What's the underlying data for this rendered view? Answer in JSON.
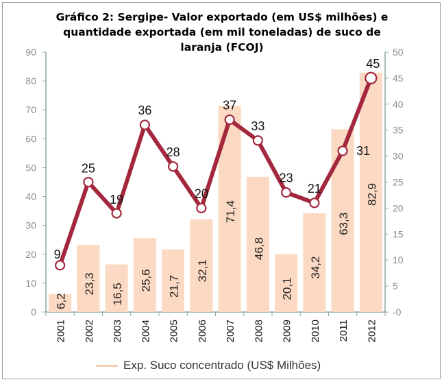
{
  "title_lines": [
    "Gráfico 2: Sergipe- Valor exportado (em US$ milhões) e",
    "quantidade exportada (em mil toneladas) de suco de",
    "laranja (FCOJ)"
  ],
  "legend": {
    "bar_label": "Exp. Suco concentrado (US$ Milhões)"
  },
  "colors": {
    "bar": "#fbd9c2",
    "line": "#a3283d",
    "marker_fill": "#ffffff",
    "axis": "#8aa6a6",
    "tick_text": "#8c8c8c"
  },
  "chart_data": {
    "type": "bar",
    "title": "Gráfico 2: Sergipe- Valor exportado (em US$ milhões) e quantidade exportada (em mil toneladas) de suco de laranja (FCOJ)",
    "categories": [
      "2001",
      "2002",
      "2003",
      "2004",
      "2005",
      "2006",
      "2007",
      "2008",
      "2009",
      "2010",
      "2011",
      "2012"
    ],
    "bar_labels": [
      "6,2",
      "23,3",
      "16,5",
      "25,6",
      "21,7",
      "32,1",
      "71,4",
      "46,8",
      "20,1",
      "34,2",
      "63,3",
      "82,9"
    ],
    "series": [
      {
        "name": "Exp. Suco concentrado (US$ Milhões)",
        "type": "bar",
        "axis": "left",
        "values": [
          6.2,
          23.3,
          16.5,
          25.6,
          21.7,
          32.1,
          71.4,
          46.8,
          20.1,
          34.2,
          63.3,
          82.9
        ]
      },
      {
        "type": "line",
        "axis": "right",
        "values": [
          9,
          25,
          19,
          36,
          28,
          20,
          37,
          33,
          23,
          21,
          31,
          45
        ]
      }
    ],
    "ylim_left": [
      0,
      90
    ],
    "yticks_left": [
      "0",
      "10",
      "20",
      "30",
      "40",
      "50",
      "60",
      "70",
      "80",
      "90"
    ],
    "ylim_right": [
      0,
      50
    ],
    "yticks_right": [
      "-0",
      "5",
      "10",
      "15",
      "20",
      "25",
      "30",
      "35",
      "40",
      "45",
      "50"
    ],
    "grid": false,
    "legend_position": "bottom"
  }
}
